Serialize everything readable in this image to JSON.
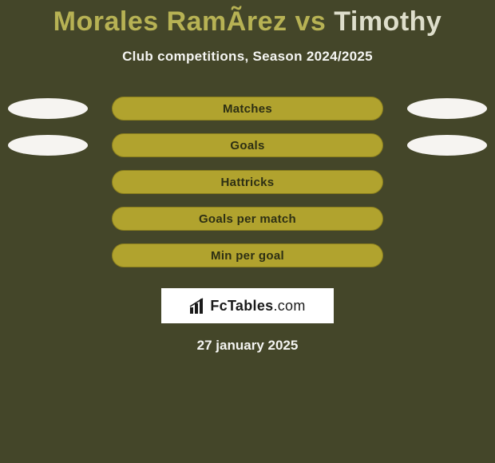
{
  "colors": {
    "background": "#444629",
    "bar_fill": "#b1a32e",
    "bar_border": "#8c801e",
    "bar_text": "#2d2f14",
    "oval_fill": "#f6f4f1",
    "text_light": "#f5f5f2",
    "player1_color": "#b7b254",
    "player2_color": "#dedecb",
    "logo_bg": "#ffffff",
    "logo_text": "#1a1a1a"
  },
  "title": {
    "player1": "Morales RamÃ­rez",
    "vs": " vs ",
    "player2": "Timothy"
  },
  "subtitle": "Club competitions, Season 2024/2025",
  "rows": [
    {
      "label": "Matches",
      "showLeftOval": true,
      "showRightOval": true
    },
    {
      "label": "Goals",
      "showLeftOval": true,
      "showRightOval": true
    },
    {
      "label": "Hattricks",
      "showLeftOval": false,
      "showRightOval": false
    },
    {
      "label": "Goals per match",
      "showLeftOval": false,
      "showRightOval": false
    },
    {
      "label": "Min per goal",
      "showLeftOval": false,
      "showRightOval": false
    }
  ],
  "logo": {
    "bold": "FcTables",
    "light": ".com"
  },
  "date": "27 january 2025"
}
